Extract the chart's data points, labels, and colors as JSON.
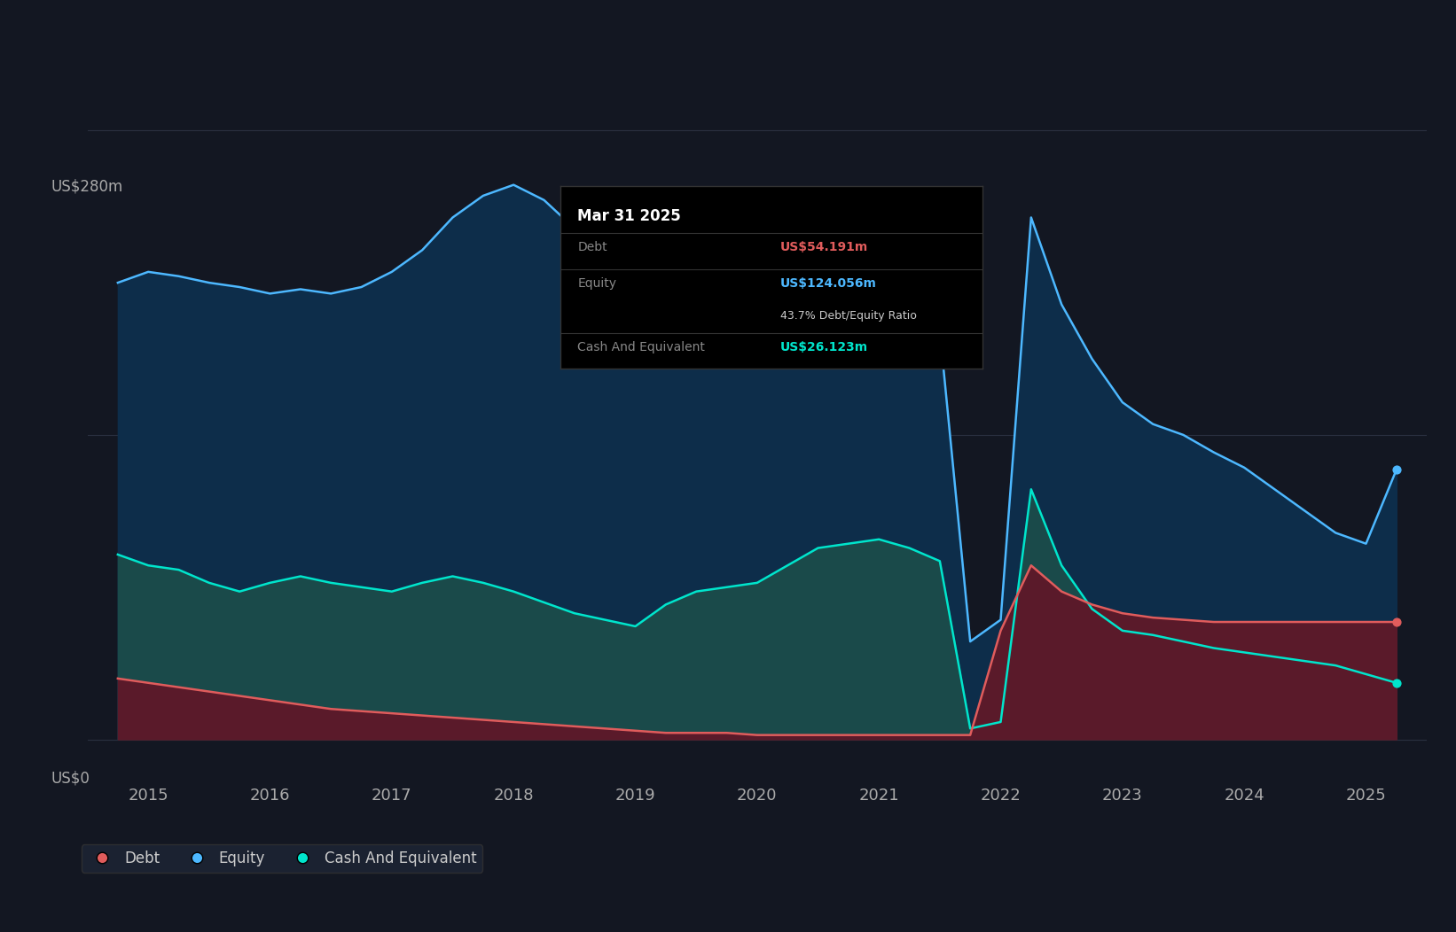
{
  "background_color": "#131722",
  "plot_bg_color": "#131722",
  "grid_color": "#2a3040",
  "ylabel": "US$280m",
  "y0label": "US$0",
  "xlim_start": 2014.5,
  "xlim_end": 2025.5,
  "ylim_min": -20,
  "ylim_max": 310,
  "debt_color": "#e05c5c",
  "equity_color": "#4db8ff",
  "cash_color": "#00e5cc",
  "equity_fill_color": "#0d2d4a",
  "cash_fill_color": "#1a4a4a",
  "debt_fill_color": "#5a1a2a",
  "tooltip": {
    "date": "Mar 31 2025",
    "debt_label": "Debt",
    "debt_value": "US$54.191m",
    "equity_label": "Equity",
    "equity_value": "US$124.056m",
    "ratio": "43.7% Debt/Equity Ratio",
    "cash_label": "Cash And Equivalent",
    "cash_value": "US$26.123m",
    "debt_color": "#e05c5c",
    "equity_color": "#4db8ff",
    "cash_color": "#00e5cc",
    "bg_color": "#050a0e",
    "border_color": "#333333"
  },
  "equity_data": {
    "years": [
      2014.75,
      2015.0,
      2015.25,
      2015.5,
      2015.75,
      2016.0,
      2016.25,
      2016.5,
      2016.75,
      2017.0,
      2017.25,
      2017.5,
      2017.75,
      2018.0,
      2018.25,
      2018.5,
      2018.75,
      2019.0,
      2019.25,
      2019.5,
      2019.75,
      2020.0,
      2020.25,
      2020.5,
      2020.75,
      2021.0,
      2021.25,
      2021.5,
      2021.75,
      2022.0,
      2022.25,
      2022.5,
      2022.75,
      2023.0,
      2023.25,
      2023.5,
      2023.75,
      2024.0,
      2024.25,
      2024.5,
      2024.75,
      2025.0,
      2025.25
    ],
    "values": [
      210,
      215,
      213,
      210,
      208,
      205,
      207,
      205,
      208,
      215,
      225,
      240,
      250,
      255,
      248,
      235,
      220,
      200,
      185,
      175,
      175,
      178,
      182,
      182,
      180,
      182,
      185,
      188,
      45,
      55,
      240,
      200,
      175,
      155,
      145,
      140,
      132,
      125,
      115,
      105,
      95,
      90,
      124
    ]
  },
  "cash_data": {
    "years": [
      2014.75,
      2015.0,
      2015.25,
      2015.5,
      2015.75,
      2016.0,
      2016.25,
      2016.5,
      2016.75,
      2017.0,
      2017.25,
      2017.5,
      2017.75,
      2018.0,
      2018.25,
      2018.5,
      2018.75,
      2019.0,
      2019.25,
      2019.5,
      2019.75,
      2020.0,
      2020.25,
      2020.5,
      2020.75,
      2021.0,
      2021.25,
      2021.5,
      2021.75,
      2022.0,
      2022.25,
      2022.5,
      2022.75,
      2023.0,
      2023.25,
      2023.5,
      2023.75,
      2024.0,
      2024.25,
      2024.5,
      2024.75,
      2025.0,
      2025.25
    ],
    "values": [
      85,
      80,
      78,
      72,
      68,
      72,
      75,
      72,
      70,
      68,
      72,
      75,
      72,
      68,
      63,
      58,
      55,
      52,
      62,
      68,
      70,
      72,
      80,
      88,
      90,
      92,
      88,
      82,
      5,
      8,
      115,
      80,
      60,
      50,
      48,
      45,
      42,
      40,
      38,
      36,
      34,
      30,
      26
    ]
  },
  "debt_data": {
    "years": [
      2014.75,
      2015.0,
      2015.25,
      2015.5,
      2015.75,
      2016.0,
      2016.25,
      2016.5,
      2016.75,
      2017.0,
      2017.25,
      2017.5,
      2017.75,
      2018.0,
      2018.25,
      2018.5,
      2018.75,
      2019.0,
      2019.25,
      2019.5,
      2019.75,
      2020.0,
      2020.25,
      2020.5,
      2020.75,
      2021.0,
      2021.25,
      2021.5,
      2021.75,
      2022.0,
      2022.25,
      2022.5,
      2022.75,
      2023.0,
      2023.25,
      2023.5,
      2023.75,
      2024.0,
      2024.25,
      2024.5,
      2024.75,
      2025.0,
      2025.25
    ],
    "values": [
      28,
      26,
      24,
      22,
      20,
      18,
      16,
      14,
      13,
      12,
      11,
      10,
      9,
      8,
      7,
      6,
      5,
      4,
      3,
      3,
      3,
      2,
      2,
      2,
      2,
      2,
      2,
      2,
      2,
      50,
      80,
      68,
      62,
      58,
      56,
      55,
      54,
      54,
      54,
      54,
      54,
      54,
      54
    ]
  },
  "xticks": [
    2015,
    2016,
    2017,
    2018,
    2019,
    2020,
    2021,
    2022,
    2023,
    2024,
    2025
  ]
}
